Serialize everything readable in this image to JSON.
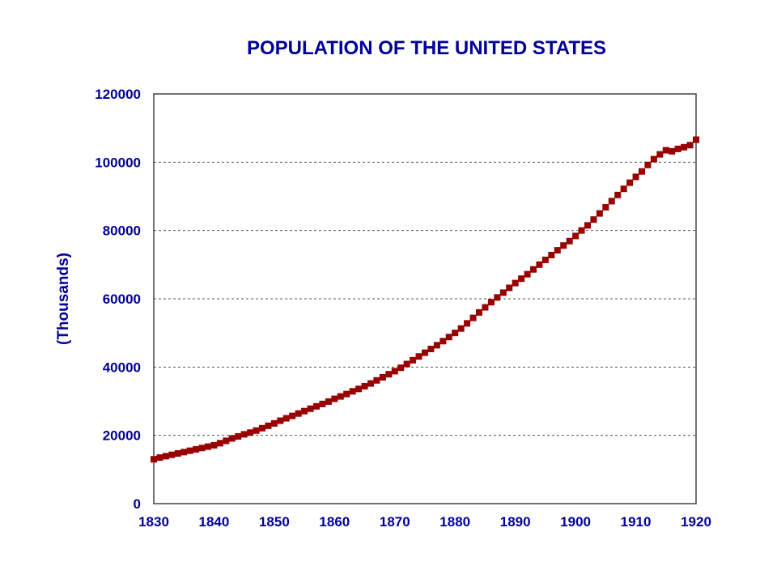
{
  "chart_data": {
    "type": "scatter",
    "title": "POPULATION OF THE UNITED STATES",
    "xlabel": "",
    "ylabel": "(Thousands)",
    "xlim": [
      1830,
      1920
    ],
    "ylim": [
      0,
      120000
    ],
    "x_ticks": [
      "1830",
      "1840",
      "1850",
      "1860",
      "1870",
      "1880",
      "1890",
      "1900",
      "1910",
      "1920"
    ],
    "y_ticks": [
      "0",
      "20000",
      "40000",
      "60000",
      "80000",
      "100000",
      "120000"
    ],
    "grid": "horizontal-dashed",
    "legend": "none",
    "series": [
      {
        "x": [
          1830,
          1831,
          1832,
          1833,
          1834,
          1835,
          1836,
          1837,
          1838,
          1839,
          1840,
          1841,
          1842,
          1843,
          1844,
          1845,
          1846,
          1847,
          1848,
          1849,
          1850,
          1851,
          1852,
          1853,
          1854,
          1855,
          1856,
          1857,
          1858,
          1859,
          1860,
          1861,
          1862,
          1863,
          1864,
          1865,
          1866,
          1867,
          1868,
          1869,
          1870,
          1871,
          1872,
          1873,
          1874,
          1875,
          1876,
          1877,
          1878,
          1879,
          1880,
          1881,
          1882,
          1883,
          1884,
          1885,
          1886,
          1887,
          1888,
          1889,
          1890,
          1891,
          1892,
          1893,
          1894,
          1895,
          1896,
          1897,
          1898,
          1899,
          1900,
          1901,
          1902,
          1903,
          1904,
          1905,
          1906,
          1907,
          1908,
          1909,
          1910,
          1911,
          1912,
          1913,
          1914,
          1915,
          1916,
          1917,
          1918,
          1919,
          1920
        ],
        "values": [
          13000,
          13500,
          13900,
          14300,
          14700,
          15100,
          15500,
          15900,
          16300,
          16700,
          17100,
          17700,
          18400,
          19100,
          19700,
          20300,
          20800,
          21400,
          22100,
          22800,
          23500,
          24300,
          25000,
          25700,
          26400,
          27100,
          27800,
          28500,
          29200,
          29900,
          30700,
          31400,
          32100,
          32900,
          33600,
          34400,
          35200,
          36100,
          37000,
          37900,
          38800,
          39800,
          40900,
          42000,
          43100,
          44200,
          45300,
          46400,
          47600,
          48800,
          50000,
          51300,
          52800,
          54400,
          56000,
          57500,
          59000,
          60400,
          61800,
          63200,
          64600,
          65900,
          67200,
          68600,
          70000,
          71400,
          72800,
          74200,
          75600,
          76900,
          78400,
          80000,
          81500,
          83200,
          85000,
          86800,
          88600,
          90400,
          92200,
          94000,
          95700,
          97300,
          99200,
          100900,
          102300,
          103500,
          103200,
          103900,
          104400,
          105000,
          106600
        ],
        "color": "#990000"
      }
    ],
    "colors": {
      "text": "#000099",
      "marker": "#990000",
      "grid": "#555555",
      "frame": "#444444"
    }
  }
}
